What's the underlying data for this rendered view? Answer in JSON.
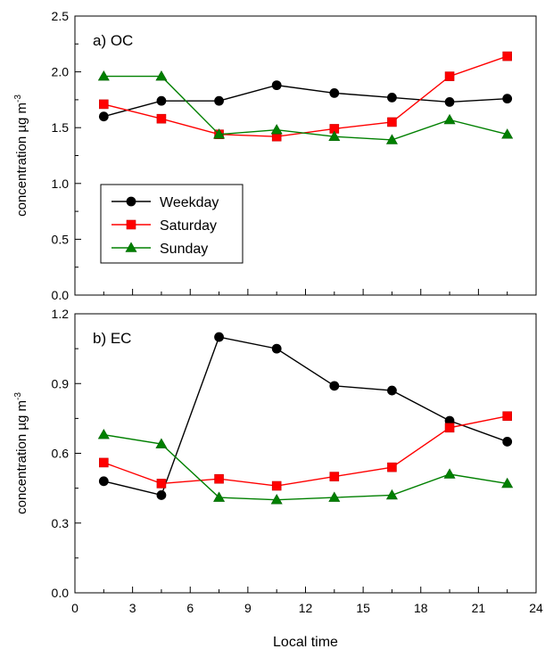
{
  "chart_data": [
    {
      "type": "line",
      "panel_label": "a) OC",
      "ylabel": "concentration µg m",
      "ylabel_superscript": "-3",
      "ylim": [
        0.0,
        2.5
      ],
      "yticks": [
        0.0,
        0.5,
        1.0,
        1.5,
        2.0,
        2.5
      ],
      "ytick_labels": [
        "0.0",
        "0.5",
        "1.0",
        "1.5",
        "2.0",
        "2.5"
      ],
      "xlim": [
        0,
        24
      ],
      "x": [
        1.5,
        4.5,
        7.5,
        10.5,
        13.5,
        16.5,
        19.5,
        22.5
      ],
      "legend_position": "center-left",
      "grid": false,
      "series": [
        {
          "name": "Weekday",
          "color": "#000000",
          "marker": "circle",
          "values": [
            1.6,
            1.74,
            1.74,
            1.88,
            1.81,
            1.77,
            1.73,
            1.76
          ]
        },
        {
          "name": "Saturday",
          "color": "#ff0000",
          "marker": "square",
          "values": [
            1.71,
            1.58,
            1.44,
            1.42,
            1.49,
            1.55,
            1.96,
            2.14
          ]
        },
        {
          "name": "Sunday",
          "color": "#008000",
          "marker": "triangle",
          "values": [
            1.96,
            1.96,
            1.44,
            1.48,
            1.42,
            1.39,
            1.57,
            1.44
          ]
        }
      ]
    },
    {
      "type": "line",
      "panel_label": "b) EC",
      "ylabel": "concentration µg m",
      "ylabel_superscript": "-3",
      "ylim": [
        0.0,
        1.2
      ],
      "yticks": [
        0.0,
        0.3,
        0.6,
        0.9,
        1.2
      ],
      "ytick_labels": [
        "0.0",
        "0.3",
        "0.6",
        "0.9",
        "1.2"
      ],
      "xlim": [
        0,
        24
      ],
      "xticks": [
        0,
        3,
        6,
        9,
        12,
        15,
        18,
        21,
        24
      ],
      "xtick_labels": [
        "0",
        "3",
        "6",
        "9",
        "12",
        "15",
        "18",
        "21",
        "24"
      ],
      "xlabel": "Local time",
      "x": [
        1.5,
        4.5,
        7.5,
        10.5,
        13.5,
        16.5,
        19.5,
        22.5
      ],
      "grid": false,
      "series": [
        {
          "name": "Weekday",
          "color": "#000000",
          "marker": "circle",
          "values": [
            0.48,
            0.42,
            1.1,
            1.05,
            0.89,
            0.87,
            0.74,
            0.65
          ]
        },
        {
          "name": "Saturday",
          "color": "#ff0000",
          "marker": "square",
          "values": [
            0.56,
            0.47,
            0.49,
            0.46,
            0.5,
            0.54,
            0.71,
            0.76
          ]
        },
        {
          "name": "Sunday",
          "color": "#008000",
          "marker": "triangle",
          "values": [
            0.68,
            0.64,
            0.41,
            0.4,
            0.41,
            0.42,
            0.51,
            0.47
          ]
        }
      ]
    }
  ]
}
